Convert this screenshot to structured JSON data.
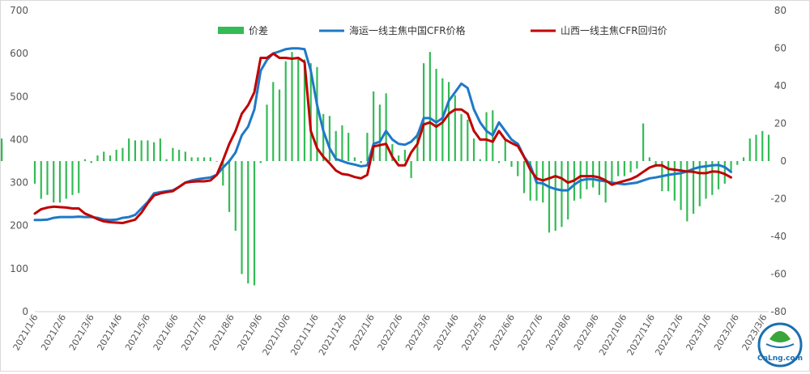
{
  "colors": {
    "spread": "#33bb55",
    "seaborne": "#1f78c8",
    "shanxi": "#c00000",
    "axis_text": "#555555",
    "logo_ring": "#1a6fb0",
    "logo_leaf": "#3aa53a"
  },
  "logo": {
    "text": "CnLng.com"
  },
  "chart_data": {
    "type": "bar+line",
    "title": "",
    "legend": {
      "position": "top",
      "entries": [
        "价差",
        "海运一线主焦中国CFR价格",
        "山西一线主焦CFR回归价"
      ]
    },
    "x_ticks": [
      "2021/1/6",
      "2021/2/6",
      "2021/3/6",
      "2021/4/6",
      "2021/5/6",
      "2021/6/6",
      "2021/7/6",
      "2021/8/6",
      "2021/9/6",
      "2021/10/6",
      "2021/11/6",
      "2021/12/6",
      "2022/1/6",
      "2022/2/6",
      "2022/3/6",
      "2022/4/6",
      "2022/5/6",
      "2022/6/6",
      "2022/7/6",
      "2022/8/6",
      "2022/9/6",
      "2022/10/6",
      "2022/11/6",
      "2022/12/6",
      "2023/1/6",
      "2023/2/6",
      "2023/3/6"
    ],
    "y_left": {
      "ticks": [
        0,
        100,
        200,
        300,
        400,
        500,
        600,
        700
      ],
      "range": [
        0,
        700
      ]
    },
    "y_right": {
      "ticks": [
        -80,
        -60,
        -40,
        -20,
        0,
        20,
        40,
        60,
        80
      ],
      "range": [
        -80,
        80
      ]
    },
    "grid": false,
    "series": [
      {
        "name": "价差",
        "kind": "bar",
        "axis": "right",
        "values": [
          -12,
          -20,
          -18,
          -22,
          -22,
          -20,
          -18,
          -17,
          1,
          -1,
          3,
          5,
          3,
          6,
          7,
          12,
          11,
          11,
          11,
          10,
          12,
          1,
          7,
          6,
          5,
          2,
          2,
          2,
          2,
          0,
          -13,
          -27,
          -37,
          -60,
          -65,
          -66,
          -1,
          30,
          42,
          38,
          53,
          58,
          55,
          54,
          52,
          50,
          25,
          24,
          16,
          19,
          15,
          2,
          -1,
          15,
          37,
          30,
          36,
          9,
          3,
          6,
          -9,
          15,
          52,
          58,
          49,
          44,
          42,
          35,
          25,
          22,
          12,
          1,
          26,
          27,
          -1,
          11,
          -3,
          -8,
          -17,
          -21,
          -21,
          -22,
          -38,
          -37,
          -35,
          -31,
          -21,
          -20,
          -15,
          -14,
          -18,
          -22,
          -12,
          -8,
          -8,
          -6,
          -4,
          20,
          2,
          -3,
          -16,
          -16,
          -21,
          -26,
          -32,
          -28,
          -24,
          -20,
          -18,
          -15,
          -12,
          -5,
          -2,
          2,
          12,
          14,
          16,
          14,
          12,
          10
        ],
        "bar_x": [
          0,
          1,
          2,
          3,
          4,
          5,
          6,
          7,
          8,
          9,
          10,
          11,
          12,
          13,
          14,
          15,
          16,
          17,
          18,
          19,
          20,
          21,
          22,
          23,
          24,
          25,
          26,
          27,
          28,
          29,
          30,
          31,
          32,
          33,
          34,
          35,
          36,
          37,
          38,
          39,
          40,
          41,
          42,
          43,
          44,
          45,
          46,
          47,
          48,
          49,
          50,
          51,
          52,
          53,
          54,
          55,
          56,
          57,
          58,
          59,
          60,
          61,
          62,
          63,
          64,
          65,
          66,
          67,
          68,
          69,
          70,
          71,
          72,
          73,
          74,
          75,
          76,
          77,
          78,
          79,
          80,
          81,
          82,
          83,
          84,
          85,
          86,
          87,
          88,
          89,
          90,
          91,
          92,
          93,
          94,
          95,
          96,
          97,
          98,
          99,
          100,
          101,
          102,
          103,
          104,
          105,
          106,
          107,
          108,
          109,
          110,
          111,
          112,
          113,
          114,
          115,
          116,
          117
        ]
      },
      {
        "name": "海运一线主焦中国CFR价格",
        "kind": "line",
        "axis": "left",
        "points": [
          [
            0,
            213
          ],
          [
            1,
            213
          ],
          [
            2,
            214
          ],
          [
            3,
            218
          ],
          [
            4,
            220
          ],
          [
            5,
            220
          ],
          [
            6,
            220
          ],
          [
            7,
            221
          ],
          [
            8,
            220
          ],
          [
            9,
            220
          ],
          [
            10,
            218
          ],
          [
            11,
            214
          ],
          [
            12,
            213
          ],
          [
            13,
            214
          ],
          [
            14,
            218
          ],
          [
            15,
            220
          ],
          [
            16,
            225
          ],
          [
            17,
            240
          ],
          [
            18,
            255
          ],
          [
            19,
            275
          ],
          [
            20,
            278
          ],
          [
            21,
            280
          ],
          [
            22,
            282
          ],
          [
            23,
            290
          ],
          [
            24,
            300
          ],
          [
            25,
            305
          ],
          [
            26,
            308
          ],
          [
            27,
            310
          ],
          [
            28,
            312
          ],
          [
            29,
            318
          ],
          [
            30,
            335
          ],
          [
            31,
            350
          ],
          [
            32,
            370
          ],
          [
            33,
            410
          ],
          [
            34,
            430
          ],
          [
            35,
            470
          ],
          [
            36,
            560
          ],
          [
            37,
            585
          ],
          [
            38,
            600
          ],
          [
            39,
            605
          ],
          [
            40,
            610
          ],
          [
            41,
            612
          ],
          [
            42,
            612
          ],
          [
            43,
            610
          ],
          [
            44,
            560
          ],
          [
            45,
            480
          ],
          [
            46,
            420
          ],
          [
            47,
            380
          ],
          [
            48,
            355
          ],
          [
            49,
            350
          ],
          [
            50,
            345
          ],
          [
            51,
            342
          ],
          [
            52,
            338
          ],
          [
            53,
            340
          ],
          [
            54,
            390
          ],
          [
            55,
            395
          ],
          [
            56,
            420
          ],
          [
            57,
            400
          ],
          [
            58,
            390
          ],
          [
            59,
            388
          ],
          [
            60,
            395
          ],
          [
            61,
            410
          ],
          [
            62,
            450
          ],
          [
            63,
            450
          ],
          [
            64,
            440
          ],
          [
            65,
            450
          ],
          [
            66,
            490
          ],
          [
            67,
            510
          ],
          [
            68,
            530
          ],
          [
            69,
            520
          ],
          [
            70,
            470
          ],
          [
            71,
            440
          ],
          [
            72,
            420
          ],
          [
            73,
            410
          ],
          [
            74,
            440
          ],
          [
            75,
            420
          ],
          [
            76,
            400
          ],
          [
            77,
            390
          ],
          [
            78,
            360
          ],
          [
            79,
            340
          ],
          [
            80,
            300
          ],
          [
            81,
            298
          ],
          [
            82,
            290
          ],
          [
            83,
            285
          ],
          [
            84,
            282
          ],
          [
            85,
            282
          ],
          [
            86,
            295
          ],
          [
            87,
            305
          ],
          [
            88,
            308
          ],
          [
            89,
            308
          ],
          [
            90,
            305
          ],
          [
            91,
            303
          ],
          [
            92,
            300
          ],
          [
            93,
            298
          ],
          [
            94,
            296
          ],
          [
            95,
            298
          ],
          [
            96,
            300
          ],
          [
            97,
            305
          ],
          [
            98,
            310
          ],
          [
            99,
            312
          ],
          [
            100,
            315
          ],
          [
            101,
            318
          ],
          [
            102,
            320
          ],
          [
            103,
            322
          ],
          [
            104,
            326
          ],
          [
            105,
            332
          ],
          [
            106,
            336
          ],
          [
            107,
            338
          ],
          [
            108,
            340
          ],
          [
            109,
            341
          ],
          [
            110,
            336
          ],
          [
            111,
            325
          ]
        ]
      },
      {
        "name": "山西一线主焦CFR回归价",
        "kind": "line",
        "axis": "left",
        "points": [
          [
            0,
            228
          ],
          [
            1,
            238
          ],
          [
            2,
            242
          ],
          [
            3,
            244
          ],
          [
            4,
            243
          ],
          [
            5,
            242
          ],
          [
            6,
            240
          ],
          [
            7,
            240
          ],
          [
            8,
            228
          ],
          [
            9,
            222
          ],
          [
            10,
            215
          ],
          [
            11,
            210
          ],
          [
            12,
            208
          ],
          [
            13,
            207
          ],
          [
            14,
            206
          ],
          [
            15,
            210
          ],
          [
            16,
            214
          ],
          [
            17,
            230
          ],
          [
            18,
            252
          ],
          [
            19,
            270
          ],
          [
            20,
            275
          ],
          [
            21,
            278
          ],
          [
            22,
            280
          ],
          [
            23,
            290
          ],
          [
            24,
            300
          ],
          [
            25,
            302
          ],
          [
            26,
            303
          ],
          [
            27,
            303
          ],
          [
            28,
            305
          ],
          [
            29,
            318
          ],
          [
            30,
            352
          ],
          [
            31,
            390
          ],
          [
            32,
            420
          ],
          [
            33,
            460
          ],
          [
            34,
            480
          ],
          [
            35,
            510
          ],
          [
            36,
            590
          ],
          [
            37,
            590
          ],
          [
            38,
            600
          ],
          [
            39,
            590
          ],
          [
            40,
            590
          ],
          [
            41,
            588
          ],
          [
            42,
            590
          ],
          [
            43,
            580
          ],
          [
            44,
            420
          ],
          [
            45,
            380
          ],
          [
            46,
            360
          ],
          [
            47,
            345
          ],
          [
            48,
            328
          ],
          [
            49,
            320
          ],
          [
            50,
            318
          ],
          [
            51,
            313
          ],
          [
            52,
            310
          ],
          [
            53,
            318
          ],
          [
            54,
            384
          ],
          [
            55,
            387
          ],
          [
            56,
            390
          ],
          [
            57,
            360
          ],
          [
            58,
            340
          ],
          [
            59,
            340
          ],
          [
            60,
            370
          ],
          [
            61,
            390
          ],
          [
            62,
            435
          ],
          [
            63,
            440
          ],
          [
            64,
            430
          ],
          [
            65,
            440
          ],
          [
            66,
            460
          ],
          [
            67,
            470
          ],
          [
            68,
            470
          ],
          [
            69,
            460
          ],
          [
            70,
            420
          ],
          [
            71,
            400
          ],
          [
            72,
            400
          ],
          [
            73,
            395
          ],
          [
            74,
            420
          ],
          [
            75,
            400
          ],
          [
            76,
            392
          ],
          [
            77,
            385
          ],
          [
            78,
            360
          ],
          [
            79,
            330
          ],
          [
            80,
            310
          ],
          [
            81,
            305
          ],
          [
            82,
            310
          ],
          [
            83,
            315
          ],
          [
            84,
            310
          ],
          [
            85,
            300
          ],
          [
            86,
            305
          ],
          [
            87,
            315
          ],
          [
            88,
            315
          ],
          [
            89,
            315
          ],
          [
            90,
            312
          ],
          [
            91,
            305
          ],
          [
            92,
            295
          ],
          [
            93,
            300
          ],
          [
            94,
            304
          ],
          [
            95,
            308
          ],
          [
            96,
            315
          ],
          [
            97,
            325
          ],
          [
            98,
            335
          ],
          [
            99,
            340
          ],
          [
            100,
            340
          ],
          [
            101,
            332
          ],
          [
            102,
            330
          ],
          [
            103,
            328
          ],
          [
            104,
            326
          ],
          [
            105,
            325
          ],
          [
            106,
            322
          ],
          [
            107,
            322
          ],
          [
            108,
            326
          ],
          [
            109,
            325
          ],
          [
            110,
            320
          ],
          [
            111,
            312
          ]
        ]
      }
    ]
  }
}
